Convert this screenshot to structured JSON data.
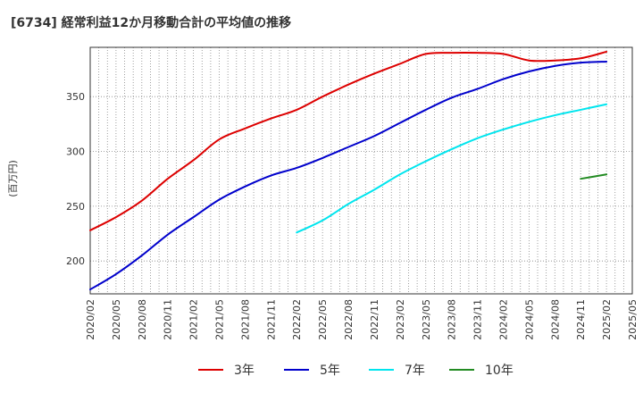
{
  "chart_data": {
    "type": "line",
    "title": "[6734]  経常利益12か月移動合計の平均値の推移",
    "ylabel": "(百万円)",
    "xlabel": "",
    "ylim": [
      170,
      395
    ],
    "yticks": [
      200,
      250,
      300,
      350
    ],
    "x_ticks": [
      "2020/02",
      "2020/05",
      "2020/08",
      "2020/11",
      "2021/02",
      "2021/05",
      "2021/08",
      "2021/11",
      "2022/02",
      "2022/05",
      "2022/08",
      "2022/11",
      "2023/02",
      "2023/05",
      "2023/08",
      "2023/11",
      "2024/02",
      "2024/05",
      "2024/08",
      "2024/11",
      "2025/02",
      "2025/05"
    ],
    "grid": true,
    "legend_position": "bottom",
    "series": [
      {
        "name": "3年",
        "color": "#dd0000",
        "x": [
          "2020/02",
          "2020/05",
          "2020/08",
          "2020/11",
          "2021/02",
          "2021/05",
          "2021/08",
          "2021/11",
          "2022/02",
          "2022/05",
          "2022/08",
          "2022/11",
          "2023/02",
          "2023/05",
          "2023/08",
          "2023/11",
          "2024/02",
          "2024/05",
          "2024/08",
          "2024/11",
          "2025/02"
        ],
        "values": [
          228,
          240,
          255,
          275,
          292,
          311,
          321,
          330,
          338,
          350,
          361,
          371,
          380,
          389,
          390,
          390,
          389,
          383,
          383,
          385,
          391
        ]
      },
      {
        "name": "5年",
        "color": "#0000cc",
        "x": [
          "2020/02",
          "2020/05",
          "2020/08",
          "2020/11",
          "2021/02",
          "2021/05",
          "2021/08",
          "2021/11",
          "2022/02",
          "2022/05",
          "2022/08",
          "2022/11",
          "2023/02",
          "2023/05",
          "2023/08",
          "2023/11",
          "2024/02",
          "2024/05",
          "2024/08",
          "2024/11",
          "2025/02"
        ],
        "values": [
          174,
          188,
          205,
          224,
          240,
          256,
          268,
          278,
          285,
          294,
          304,
          314,
          326,
          338,
          349,
          357,
          366,
          373,
          378,
          381,
          382
        ]
      },
      {
        "name": "7年",
        "color": "#00e5ee",
        "x": [
          "2022/02",
          "2022/05",
          "2022/08",
          "2022/11",
          "2023/02",
          "2023/05",
          "2023/08",
          "2023/11",
          "2024/02",
          "2024/05",
          "2024/08",
          "2024/11",
          "2025/02"
        ],
        "values": [
          226,
          237,
          252,
          265,
          279,
          291,
          302,
          312,
          320,
          327,
          333,
          338,
          343
        ]
      },
      {
        "name": "10年",
        "color": "#228b22",
        "x": [
          "2024/11",
          "2025/02"
        ],
        "values": [
          275,
          279
        ]
      }
    ]
  }
}
